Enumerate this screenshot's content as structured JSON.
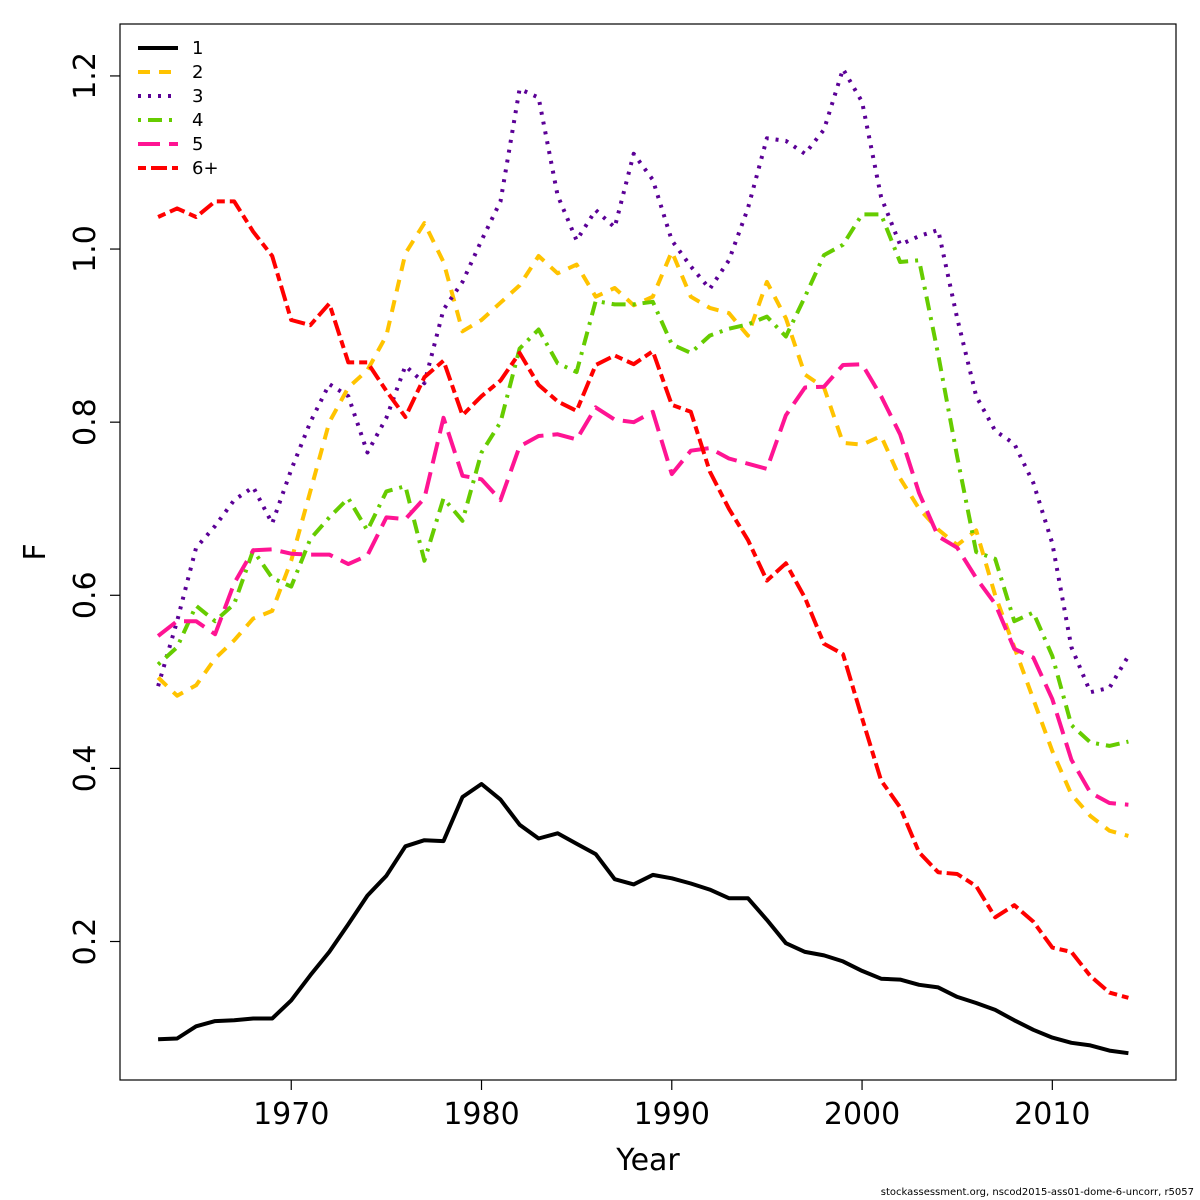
{
  "chart_data": {
    "type": "line",
    "title": "",
    "xlabel": "Year",
    "ylabel": "F",
    "xlim": [
      1961,
      2016.5
    ],
    "ylim": [
      0.04,
      1.26
    ],
    "xticks": [
      1970,
      1980,
      1990,
      2000,
      2010
    ],
    "yticks": [
      0.2,
      0.4,
      0.6,
      0.8,
      1.0,
      1.2
    ],
    "xtick_labels": [
      "1970",
      "1980",
      "1990",
      "2000",
      "2010"
    ],
    "ytick_labels": [
      "0.2",
      "0.4",
      "0.6",
      "0.8",
      "1.0",
      "1.2"
    ],
    "grid": false,
    "legend_position": "top-left",
    "x": [
      1963,
      1964,
      1965,
      1966,
      1967,
      1968,
      1969,
      1970,
      1971,
      1972,
      1973,
      1974,
      1975,
      1976,
      1977,
      1978,
      1979,
      1980,
      1981,
      1982,
      1983,
      1984,
      1985,
      1986,
      1987,
      1988,
      1989,
      1990,
      1991,
      1992,
      1993,
      1994,
      1995,
      1996,
      1997,
      1998,
      1999,
      2000,
      2001,
      2002,
      2003,
      2004,
      2005,
      2006,
      2007,
      2008,
      2009,
      2010,
      2011,
      2012,
      2013,
      2014
    ],
    "series": [
      {
        "name": "1",
        "color": "#000000",
        "dash": "solid",
        "values": [
          0.087,
          0.088,
          0.102,
          0.108,
          0.109,
          0.111,
          0.111,
          0.132,
          0.161,
          0.188,
          0.22,
          0.253,
          0.276,
          0.31,
          0.317,
          0.316,
          0.367,
          0.382,
          0.364,
          0.335,
          0.319,
          0.325,
          0.313,
          0.301,
          0.272,
          0.266,
          0.277,
          0.273,
          0.267,
          0.26,
          0.25,
          0.25,
          0.225,
          0.198,
          0.188,
          0.184,
          0.177,
          0.166,
          0.157,
          0.156,
          0.15,
          0.147,
          0.136,
          0.129,
          0.121,
          0.109,
          0.098,
          0.089,
          0.083,
          0.08,
          0.074,
          0.071
        ]
      },
      {
        "name": "2",
        "color": "#FFC300",
        "dash": "dashed",
        "values": [
          0.505,
          0.484,
          0.496,
          0.527,
          0.548,
          0.573,
          0.582,
          0.64,
          0.72,
          0.8,
          0.84,
          0.86,
          0.9,
          0.995,
          1.03,
          0.985,
          0.905,
          0.918,
          0.938,
          0.958,
          0.992,
          0.972,
          0.982,
          0.945,
          0.955,
          0.935,
          0.945,
          0.997,
          0.945,
          0.932,
          0.926,
          0.9,
          0.962,
          0.92,
          0.855,
          0.84,
          0.776,
          0.774,
          0.784,
          0.735,
          0.7,
          0.676,
          0.658,
          0.675,
          0.6,
          0.54,
          0.48,
          0.42,
          0.37,
          0.345,
          0.328,
          0.322
        ]
      },
      {
        "name": "3",
        "color": "#5B0096",
        "dash": "dotted",
        "values": [
          0.495,
          0.57,
          0.655,
          0.68,
          0.71,
          0.725,
          0.683,
          0.745,
          0.8,
          0.844,
          0.83,
          0.765,
          0.805,
          0.865,
          0.845,
          0.93,
          0.962,
          1.01,
          1.055,
          1.185,
          1.175,
          1.062,
          1.01,
          1.045,
          1.025,
          1.11,
          1.08,
          1.01,
          0.98,
          0.954,
          0.987,
          1.047,
          1.128,
          1.125,
          1.11,
          1.138,
          1.208,
          1.17,
          1.06,
          1.005,
          1.015,
          1.022,
          0.92,
          0.83,
          0.79,
          0.775,
          0.73,
          0.66,
          0.54,
          0.488,
          0.493,
          0.53
        ]
      },
      {
        "name": "4",
        "color": "#66CC00",
        "dash": "dotdash",
        "values": [
          0.52,
          0.54,
          0.588,
          0.57,
          0.59,
          0.652,
          0.62,
          0.61,
          0.665,
          0.69,
          0.712,
          0.675,
          0.72,
          0.726,
          0.64,
          0.712,
          0.686,
          0.765,
          0.8,
          0.885,
          0.907,
          0.868,
          0.858,
          0.94,
          0.936,
          0.936,
          0.939,
          0.89,
          0.88,
          0.9,
          0.908,
          0.913,
          0.922,
          0.899,
          0.945,
          0.993,
          1.005,
          1.04,
          1.04,
          0.985,
          0.987,
          0.878,
          0.76,
          0.65,
          0.642,
          0.57,
          0.58,
          0.53,
          0.45,
          0.43,
          0.426,
          0.431
        ]
      },
      {
        "name": "5",
        "color": "#FF1493",
        "dash": "longdash",
        "values": [
          0.553,
          0.57,
          0.57,
          0.555,
          0.614,
          0.652,
          0.653,
          0.648,
          0.647,
          0.647,
          0.636,
          0.646,
          0.69,
          0.688,
          0.712,
          0.805,
          0.738,
          0.734,
          0.71,
          0.772,
          0.784,
          0.786,
          0.78,
          0.817,
          0.803,
          0.8,
          0.812,
          0.74,
          0.767,
          0.77,
          0.758,
          0.752,
          0.746,
          0.808,
          0.84,
          0.841,
          0.866,
          0.867,
          0.83,
          0.786,
          0.718,
          0.668,
          0.655,
          0.62,
          0.59,
          0.538,
          0.528,
          0.48,
          0.41,
          0.372,
          0.36,
          0.358
        ]
      },
      {
        "name": "6+",
        "color": "#FF0000",
        "dash": "twodash",
        "values": [
          1.037,
          1.047,
          1.037,
          1.055,
          1.055,
          1.02,
          0.992,
          0.918,
          0.912,
          0.937,
          0.869,
          0.869,
          0.836,
          0.806,
          0.852,
          0.871,
          0.808,
          0.83,
          0.848,
          0.88,
          0.843,
          0.824,
          0.813,
          0.866,
          0.877,
          0.867,
          0.882,
          0.82,
          0.812,
          0.743,
          0.7,
          0.664,
          0.617,
          0.637,
          0.597,
          0.544,
          0.532,
          0.458,
          0.386,
          0.355,
          0.303,
          0.28,
          0.278,
          0.264,
          0.228,
          0.242,
          0.223,
          0.193,
          0.188,
          0.16,
          0.141,
          0.135
        ]
      }
    ]
  },
  "footer": "stockassessment.org, nscod2015-ass01-dome-6-uncorr, r5057"
}
